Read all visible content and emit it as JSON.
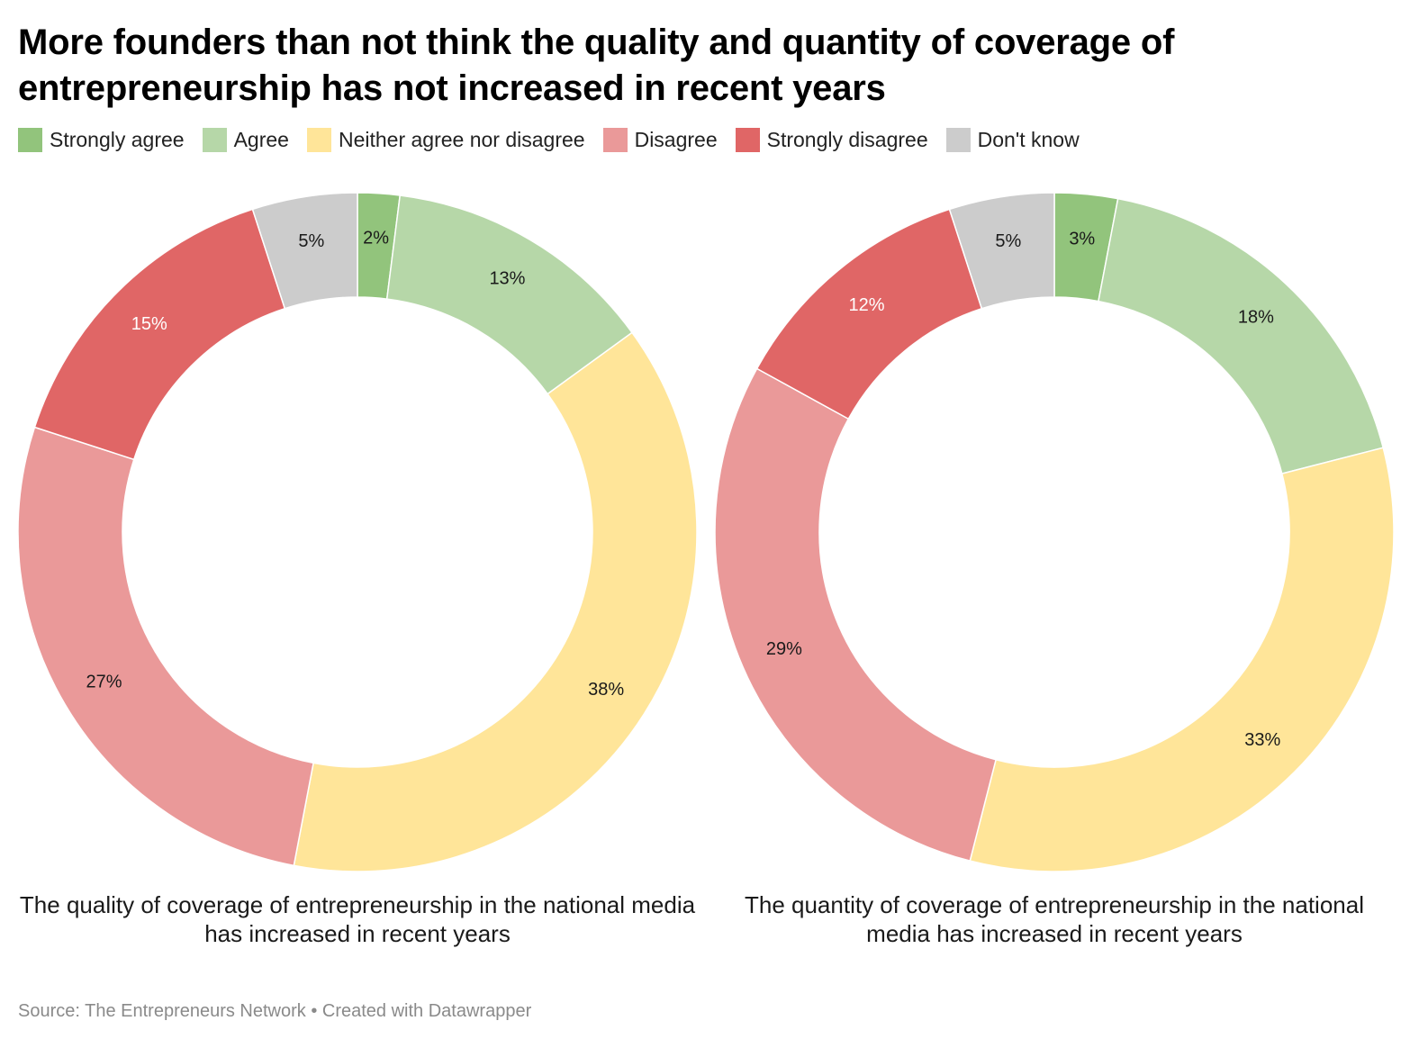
{
  "title": "More founders than not think the quality and quantity of coverage of entrepreneurship has not increased in recent years",
  "legend": [
    {
      "label": "Strongly agree",
      "color": "#92c47c"
    },
    {
      "label": "Agree",
      "color": "#b6d7a8"
    },
    {
      "label": "Neither agree nor disagree",
      "color": "#ffe599"
    },
    {
      "label": "Disagree",
      "color": "#ea9999"
    },
    {
      "label": "Strongly disagree",
      "color": "#e06666"
    },
    {
      "label": "Don't know",
      "color": "#cccccc"
    }
  ],
  "chart_data": [
    {
      "type": "pie",
      "subtype": "donut",
      "title": "The quality of coverage of entrepreneurship in the national media has increased in recent years",
      "categories": [
        "Strongly agree",
        "Agree",
        "Neither agree nor disagree",
        "Disagree",
        "Strongly disagree",
        "Don't know"
      ],
      "values": [
        2,
        13,
        38,
        27,
        15,
        5
      ],
      "labels": [
        "2%",
        "13%",
        "38%",
        "27%",
        "15%",
        "5%"
      ]
    },
    {
      "type": "pie",
      "subtype": "donut",
      "title": "The quantity of coverage of entrepreneurship in the national media has increased in recent years",
      "categories": [
        "Strongly agree",
        "Agree",
        "Neither agree nor disagree",
        "Disagree",
        "Strongly disagree",
        "Don't know"
      ],
      "values": [
        3,
        18,
        33,
        29,
        12,
        5
      ],
      "labels": [
        "3%",
        "18%",
        "33%",
        "29%",
        "12%",
        "5%"
      ]
    }
  ],
  "captions": [
    "The quality of coverage of entrepreneurship in the national media has increased in recent years",
    "The quantity of coverage of entrepreneurship in the national media has increased in recent years"
  ],
  "source": "Source: The Entrepreneurs Network • Created with Datawrapper"
}
